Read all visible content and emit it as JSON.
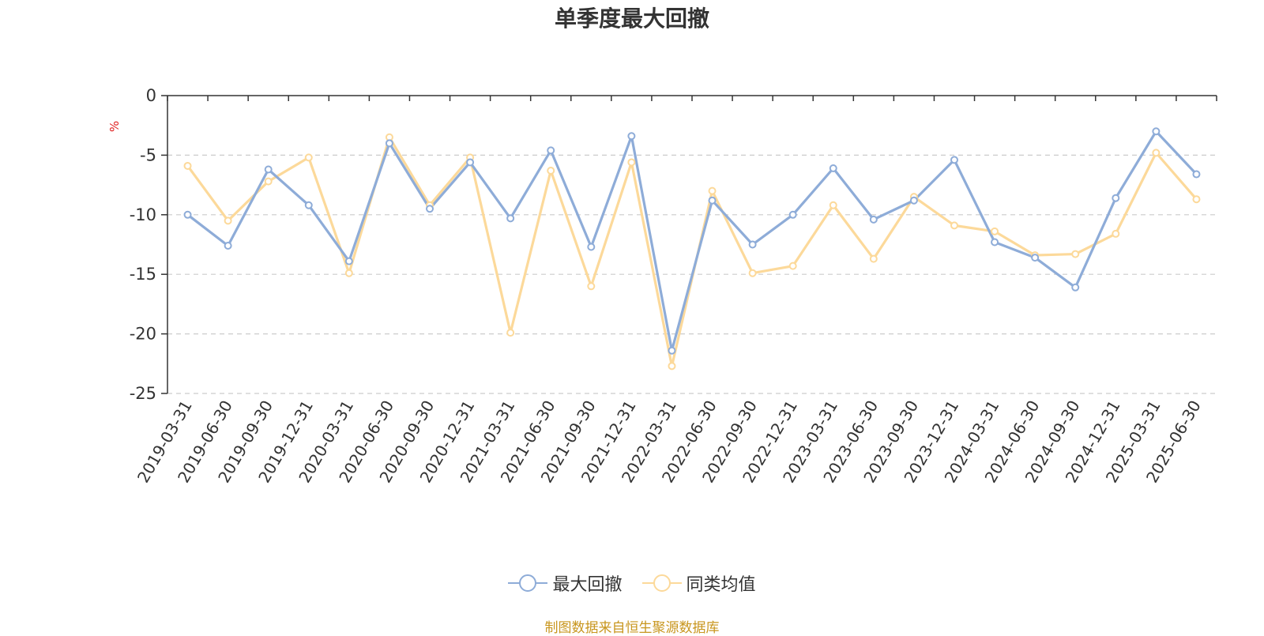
{
  "chart_data": {
    "type": "line",
    "title": "单季度最大回撤",
    "ylabel": "%",
    "ylim": [
      -25,
      0
    ],
    "yticks": [
      0,
      -5,
      -10,
      -15,
      -20,
      -25
    ],
    "grid": true,
    "legend_position": "bottom",
    "categories": [
      "2019-03-31",
      "2019-06-30",
      "2019-09-30",
      "2019-12-31",
      "2020-03-31",
      "2020-06-30",
      "2020-09-30",
      "2020-12-31",
      "2021-03-31",
      "2021-06-30",
      "2021-09-30",
      "2021-12-31",
      "2022-03-31",
      "2022-06-30",
      "2022-09-30",
      "2022-12-31",
      "2023-03-31",
      "2023-06-30",
      "2023-09-30",
      "2023-12-31",
      "2024-03-31",
      "2024-06-30",
      "2024-09-30",
      "2024-12-31",
      "2025-03-31",
      "2025-06-30"
    ],
    "series": [
      {
        "name": "最大回撤",
        "color": "#8eacd8",
        "values": [
          -10.0,
          -12.6,
          -6.2,
          -9.2,
          -13.9,
          -4.0,
          -9.5,
          -5.6,
          -10.3,
          -4.6,
          -12.7,
          -3.4,
          -21.4,
          -8.8,
          -12.5,
          -10.0,
          -6.1,
          -10.4,
          -8.8,
          -5.4,
          -12.3,
          -13.6,
          -16.1,
          -8.6,
          -3.0,
          -6.6
        ]
      },
      {
        "name": "同类均值",
        "color": "#fcd99a",
        "values": [
          -5.9,
          -10.5,
          -7.2,
          -5.2,
          -14.9,
          -3.5,
          -9.2,
          -5.2,
          -19.9,
          -6.3,
          -16.0,
          -5.6,
          -22.7,
          -8.0,
          -14.9,
          -14.3,
          -9.2,
          -13.7,
          -8.5,
          -10.9,
          -11.4,
          -13.4,
          -13.3,
          -11.6,
          -4.8,
          -8.7
        ]
      }
    ]
  },
  "source_text": "制图数据来自恒生聚源数据库",
  "colors": {
    "axis": "#333333",
    "grid": "#cccccc",
    "unit_label": "#e02020",
    "source_text": "#c8961e"
  }
}
